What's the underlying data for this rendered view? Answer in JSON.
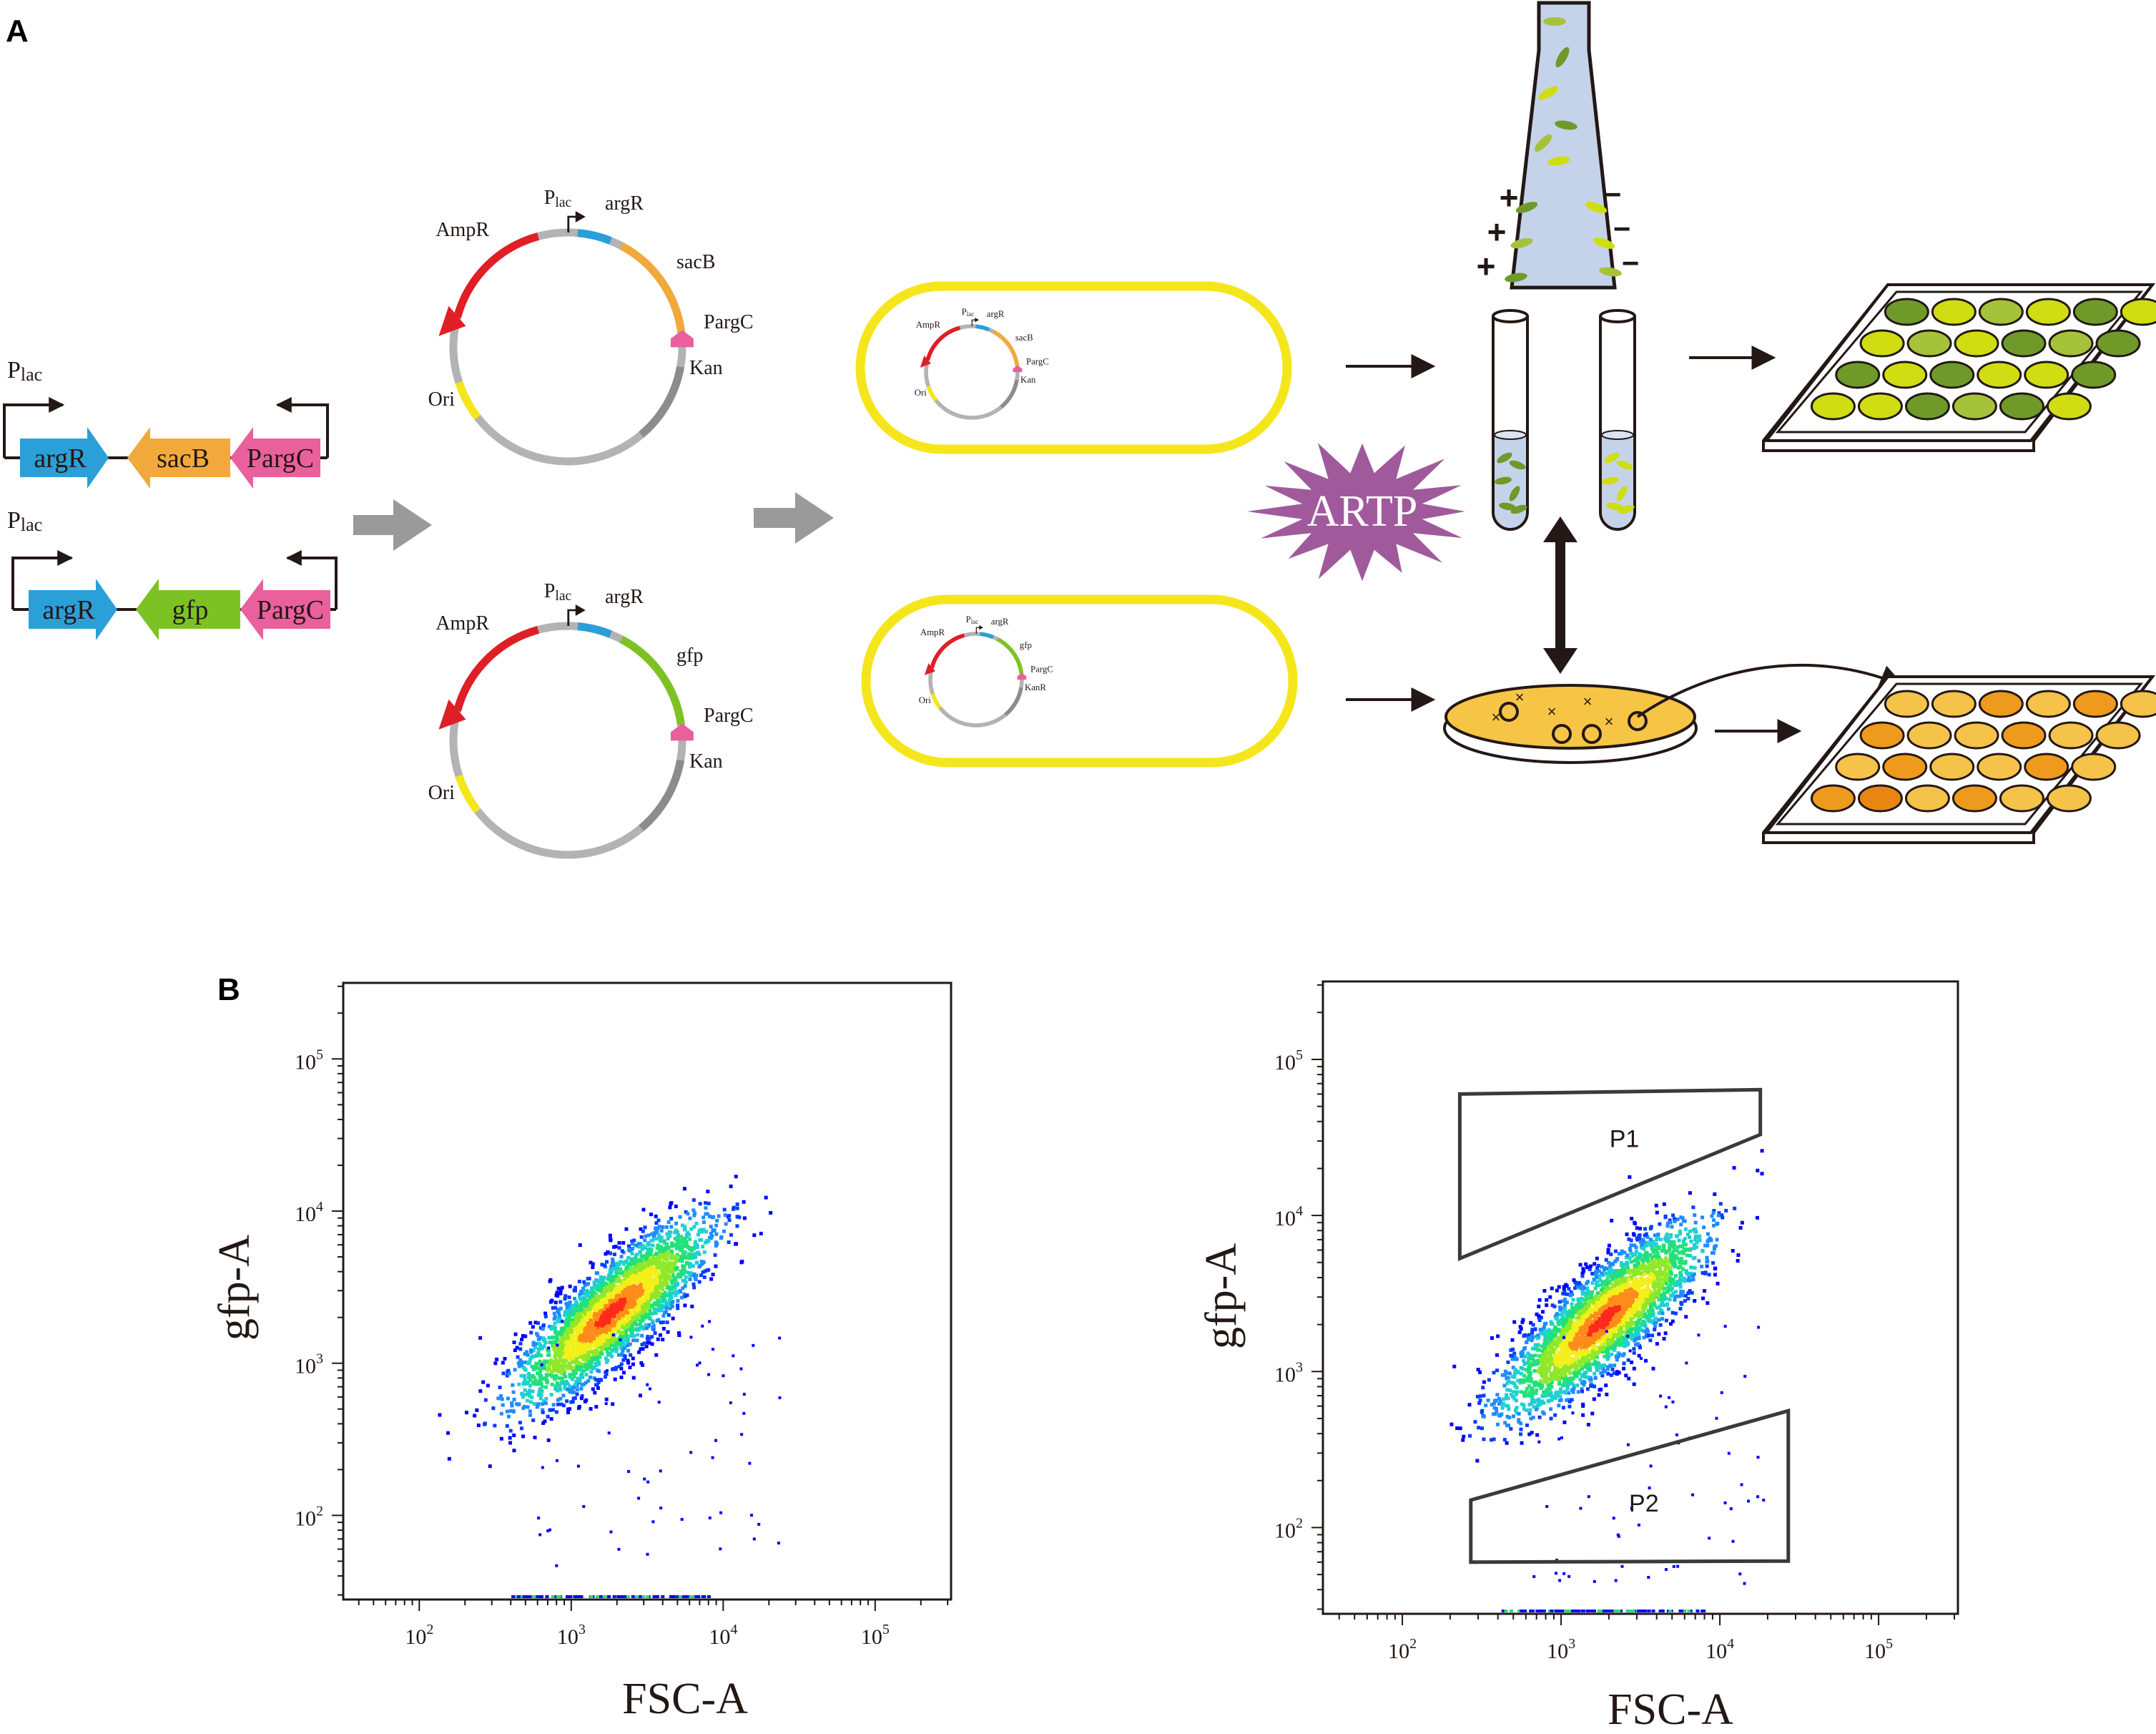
{
  "panels": {
    "a": {
      "label": "A"
    },
    "b": {
      "label": "B"
    }
  },
  "cassettes": {
    "promoter_base": "P",
    "promoter_sub": "lac",
    "top": {
      "gene1": "argR",
      "gene2": "sacB",
      "gene3": "PargC"
    },
    "bottom": {
      "gene1": "argR",
      "gene2": "gfp",
      "gene3": "PargC"
    }
  },
  "plasmids": {
    "top": {
      "plac_base": "P",
      "plac_sub": "lac",
      "argR": "argR",
      "ampR": "AmpR",
      "insert": "sacB",
      "pargC": "PargC",
      "kan": "Kan",
      "ori": "Ori"
    },
    "bottom": {
      "plac_base": "P",
      "plac_sub": "lac",
      "argR": "argR",
      "ampR": "AmpR",
      "insert": "gfp",
      "pargC": "PargC",
      "kan": "Kan",
      "ori": "Ori"
    }
  },
  "cells": {
    "top": {
      "plac_base": "P",
      "plac_sub": "lac",
      "argR": "argR",
      "ampR": "AmpR",
      "insert": "sacB",
      "pargC": "PargC",
      "kan": "Kan",
      "ori": "Ori"
    },
    "bottom": {
      "plac_base": "P",
      "plac_sub": "lac",
      "argR": "argR",
      "ampR": "AmpR",
      "insert": "gfp",
      "pargC": "PargC",
      "kan": "KanR",
      "ori": "Ori"
    }
  },
  "artp": {
    "label": "ARTP"
  },
  "sorter": {
    "plus": "+",
    "minus": "−"
  },
  "colors": {
    "argR": "#2a9fd8",
    "sacB": "#f2a93b",
    "pargC": "#e9609c",
    "gfp": "#7dc224",
    "ampR": "#e01e26",
    "kan": "#8c8c8c",
    "ori": "#f5e61c",
    "backbone": "#b3b3b3",
    "cell_outline": "#f5e61c",
    "artp": "#a05a9c",
    "nozzle": "#c5d3ea",
    "green_dark": "#6f9a2a",
    "green_light": "#cfdd12",
    "orange_dark": "#ee9a1c",
    "orange_light": "#f5c24a"
  },
  "chart_data": [
    {
      "type": "scatter",
      "title": "",
      "xlabel": "FSC-A",
      "ylabel": "gfp-A",
      "x_scale": "log",
      "y_scale": "log",
      "xlim": [
        31.6,
        316000
      ],
      "ylim": [
        28,
        316000
      ],
      "x_ticks": [
        100,
        1000,
        10000,
        100000
      ],
      "y_ticks": [
        100,
        1000,
        10000,
        100000
      ],
      "x_tick_labels": [
        "10^2",
        "10^3",
        "10^4",
        "10^5"
      ],
      "y_tick_labels": [
        "10^2",
        "10^3",
        "10^4",
        "10^5"
      ],
      "population": {
        "center_x": 1800,
        "center_y": 2200,
        "max_x": 25000,
        "max_y": 23000
      },
      "gates": []
    },
    {
      "type": "scatter",
      "title": "",
      "xlabel": "FSC-A",
      "ylabel": "gfp-A",
      "x_scale": "log",
      "y_scale": "log",
      "xlim": [
        31.6,
        316000
      ],
      "ylim": [
        28,
        316000
      ],
      "x_ticks": [
        100,
        1000,
        10000,
        100000
      ],
      "y_ticks": [
        100,
        1000,
        10000,
        100000
      ],
      "x_tick_labels": [
        "10^2",
        "10^3",
        "10^4",
        "10^5"
      ],
      "y_tick_labels": [
        "10^2",
        "10^3",
        "10^4",
        "10^5"
      ],
      "population": {
        "center_x": 1800,
        "center_y": 2200,
        "max_x": 30000,
        "max_y": 30000
      },
      "gates": [
        {
          "name": "P1",
          "vertices": [
            [
              230,
              60000
            ],
            [
              18000,
              64000
            ],
            [
              18000,
              33000
            ],
            [
              230,
              5300
            ]
          ]
        },
        {
          "name": "P2",
          "vertices": [
            [
              270,
              150
            ],
            [
              27000,
              560
            ],
            [
              27000,
              61
            ],
            [
              270,
              60
            ]
          ]
        }
      ]
    }
  ]
}
